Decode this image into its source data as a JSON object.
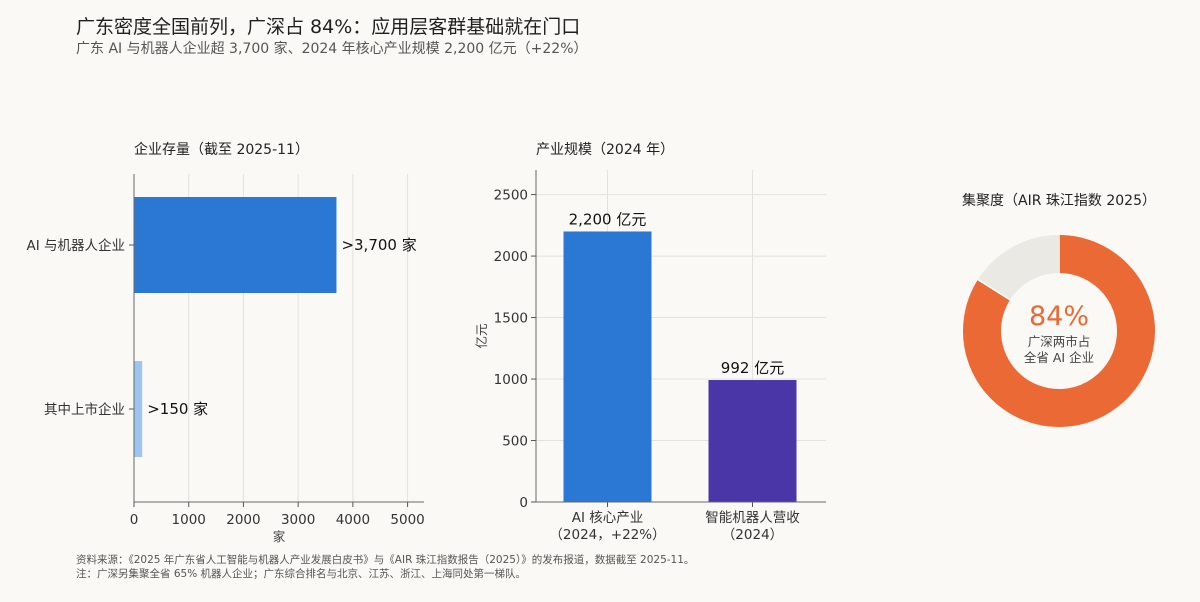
{
  "header": {
    "title": "广东密度全国前列，广深占 84%：应用层客群基础就在门口",
    "subtitle": "广东 AI 与机器人企业超 3,700 家、2024 年核心产业规模 2,200 亿元（+22%）"
  },
  "footer": {
    "line1": "资料来源：《2025 年广东省人工智能与机器人产业发展白皮书》与《AIR 珠江指数报告（2025）》的发布报道，数据截至 2025-11。",
    "line2": "注：广深另集聚全省 65% 机器人企业；广东综合排名与北京、江苏、浙江、上海同处第一梯队。"
  },
  "colors": {
    "blue": "#2b78d4",
    "light_blue": "#9ec5f0",
    "purple": "#4b36a8",
    "orange": "#ea6935",
    "donut_rest": "#ebe9e4"
  },
  "chart_data": [
    {
      "type": "bar",
      "orientation": "horizontal",
      "title": "企业存量（截至 2025-11）",
      "categories": [
        "AI 与机器人企业",
        "其中上市企业"
      ],
      "values": [
        3700,
        150
      ],
      "value_labels": [
        ">3,700 家",
        ">150 家"
      ],
      "xlabel": "家",
      "ylabel": "",
      "xlim": [
        0,
        5300
      ],
      "xticks": [
        0,
        1000,
        2000,
        3000,
        4000,
        5000
      ],
      "grid": true
    },
    {
      "type": "bar",
      "orientation": "vertical",
      "title": "产业规模（2024 年）",
      "categories": [
        [
          "AI 核心产业",
          "（2024，+22%）"
        ],
        [
          "智能机器人营收",
          "（2024）"
        ]
      ],
      "values": [
        2200,
        992
      ],
      "value_labels": [
        "2,200 亿元",
        "992 亿元"
      ],
      "xlabel": "",
      "ylabel": "亿元",
      "ylim": [
        0,
        2700
      ],
      "yticks": [
        0,
        500,
        1000,
        1500,
        2000,
        2500
      ],
      "grid": true
    },
    {
      "type": "pie",
      "variant": "donut",
      "title": "集聚度（AIR 珠江指数 2025）",
      "values": [
        84,
        16
      ],
      "center_value": "84%",
      "center_label": [
        "广深两市占",
        "全省 AI 企业"
      ]
    }
  ]
}
